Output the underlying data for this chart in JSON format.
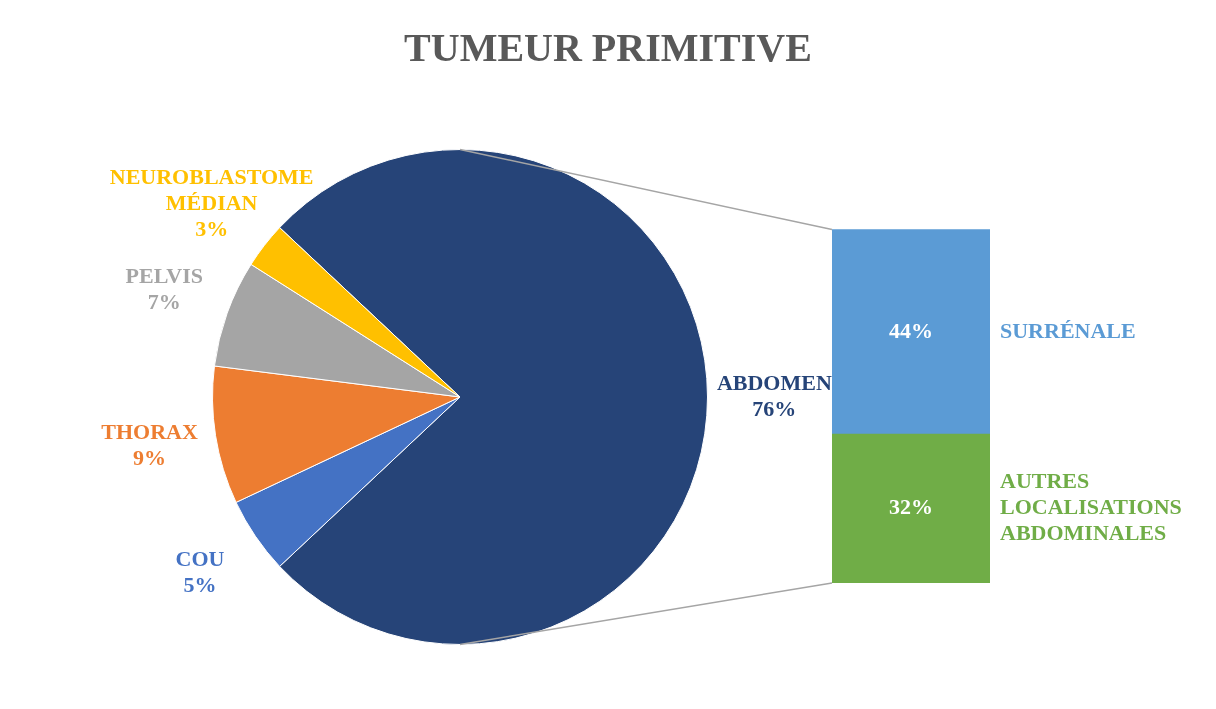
{
  "chart_data": [
    {
      "type": "pie",
      "title": "TUMEUR PRIMITIVE",
      "categories": [
        "ABDOMEN",
        "COU",
        "THORAX",
        "PELVIS",
        "NEUROBLASTOME MÉDIAN"
      ],
      "values": [
        76,
        5,
        9,
        7,
        3
      ],
      "colors": [
        "#264478",
        "#4472c4",
        "#ed7d31",
        "#a5a5a5",
        "#ffc000"
      ],
      "value_labels": [
        "76%",
        "5%",
        "9%",
        "7%",
        "3%"
      ],
      "legend": false
    },
    {
      "type": "bar",
      "stacked": true,
      "categories": [
        null
      ],
      "series": [
        {
          "name": "AUTRES LOCALISATIONS ABDOMINALES",
          "color": "#70ad47",
          "values": [
            32
          ],
          "value_labels": [
            "32%"
          ]
        },
        {
          "name": "SURRÉNALE",
          "color": "#5b9bd5",
          "values": [
            44
          ],
          "value_labels": [
            "44%"
          ]
        }
      ],
      "legend": false
    }
  ]
}
